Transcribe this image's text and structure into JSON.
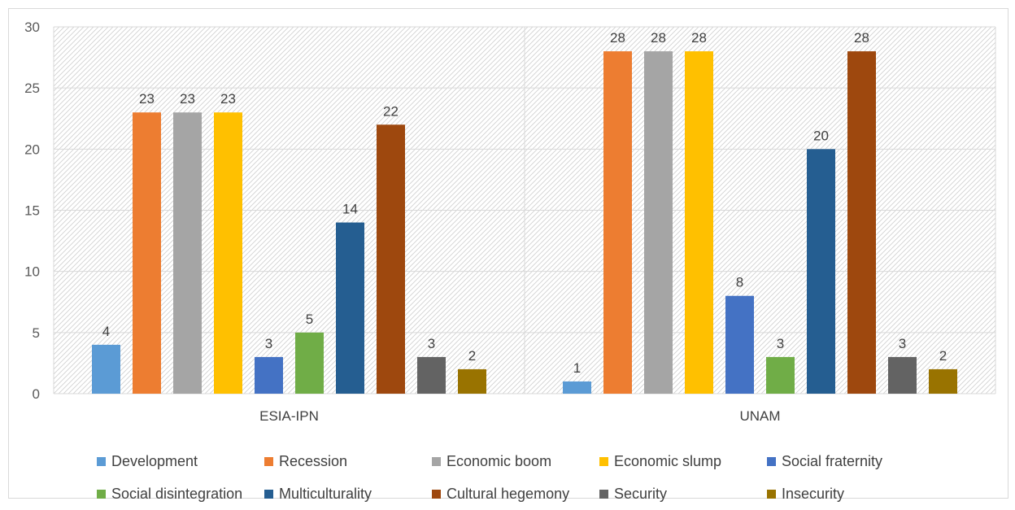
{
  "chart_data": {
    "type": "bar",
    "categories": [
      "ESIA-IPN",
      "UNAM"
    ],
    "series": [
      {
        "name": "Development",
        "color": "#5b9bd5",
        "values": [
          4,
          1
        ]
      },
      {
        "name": "Recession",
        "color": "#ed7d31",
        "values": [
          23,
          28
        ]
      },
      {
        "name": "Economic boom",
        "color": "#a5a5a5",
        "values": [
          23,
          28
        ]
      },
      {
        "name": "Economic slump",
        "color": "#ffc000",
        "values": [
          23,
          28
        ]
      },
      {
        "name": "Social fraternity",
        "color": "#4472c4",
        "values": [
          3,
          8
        ]
      },
      {
        "name": "Social disintegration",
        "color": "#70ad47",
        "values": [
          5,
          3
        ]
      },
      {
        "name": "Multiculturality",
        "color": "#255e91",
        "values": [
          14,
          20
        ]
      },
      {
        "name": "Cultural hegemony",
        "color": "#9e480e",
        "values": [
          22,
          28
        ]
      },
      {
        "name": "Security",
        "color": "#636363",
        "values": [
          3,
          3
        ]
      },
      {
        "name": "Insecurity",
        "color": "#997300",
        "values": [
          2,
          2
        ]
      }
    ],
    "ylim": [
      0,
      30
    ],
    "yticks": [
      0,
      5,
      10,
      15,
      20,
      25,
      30
    ],
    "grid": true,
    "legend": "bottom",
    "data_labels": true
  }
}
